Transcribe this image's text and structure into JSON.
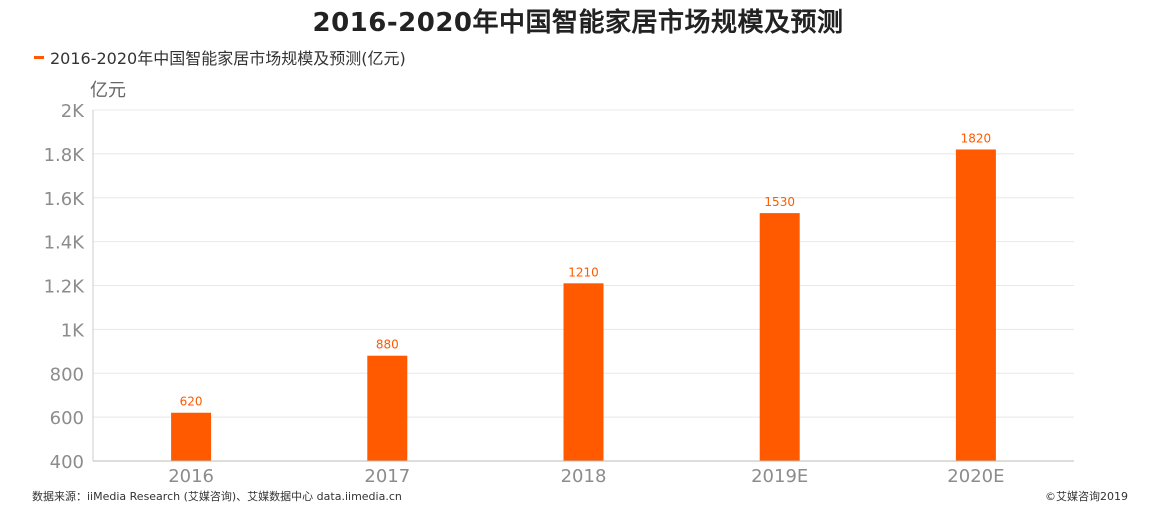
{
  "title": "2016-2020年中国智能家居市场规模及预测",
  "unit_label": "亿元",
  "accent_color": "#ff5a00",
  "chart_data": {
    "type": "bar",
    "categories": [
      "2016",
      "2017",
      "2018",
      "2019E",
      "2020E"
    ],
    "series": [
      {
        "name": "2016-2020年中国智能家居市场规模及预测(亿元)",
        "values": [
          620,
          880,
          1210,
          1530,
          1820
        ],
        "data_labels": [
          "620",
          "880",
          "1210",
          "1530",
          "1820"
        ]
      }
    ],
    "ylim": [
      400,
      2000
    ],
    "yticks": [
      400,
      600,
      800,
      1000,
      1200,
      1400,
      1600,
      1800,
      2000
    ],
    "ytick_labels": [
      "400",
      "600",
      "800",
      "1K",
      "1.2K",
      "1.4K",
      "1.6K",
      "1.8K",
      "2K"
    ],
    "grid": true,
    "legend_position": "top-left"
  },
  "footer": {
    "source": "数据来源：iiMedia Research (艾媒咨询)、艾媒数据中心 data.iimedia.cn",
    "copyright": "©艾媒咨询2019"
  }
}
